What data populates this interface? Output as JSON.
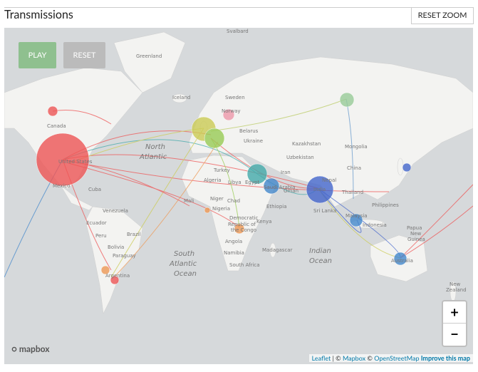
{
  "header": {
    "title": "Transmissions",
    "reset_zoom": "RESET ZOOM"
  },
  "controls": {
    "play": "PLAY",
    "reset": "RESET",
    "zoom_in": "+",
    "zoom_out": "−"
  },
  "map_labels": [
    "Greenland",
    "Iceland",
    "Sweden",
    "Norway",
    "Svalbard",
    "Canada",
    "United States",
    "Mexico",
    "Cuba",
    "Venezuela",
    "Ecuador",
    "Peru",
    "Brazil",
    "Bolivia",
    "Paraguay",
    "Argentina",
    "North",
    "Atlantic",
    "South",
    "Atlantic",
    "Ocean",
    "Indian",
    "Ocean",
    "Belarus",
    "Ukraine",
    "Kazakhstan",
    "Mongolia",
    "Uzbekistan",
    "China",
    "Turkey",
    "Iran",
    "Algeria",
    "Libya",
    "Egypt",
    "Saudi Arabia",
    "Oman",
    "India",
    "Nepal",
    "Mali",
    "Niger",
    "Chad",
    "Nigeria",
    "Ethiopia",
    "Kenya",
    "Democratic",
    "Republic of",
    "the Congo",
    "Angola",
    "Namibia",
    "Madagascar",
    "South Africa",
    "Sri Lanka",
    "Thailand",
    "Philippines",
    "Malaysia",
    "Indonesia",
    "Papua",
    "New",
    "Guinea",
    "Australia",
    "New",
    "Zealand"
  ],
  "attribution": {
    "logo": "mapbox",
    "leaflet": "Leaflet",
    "mapbox": "Mapbox",
    "osm": "OpenStreetMap",
    "improve": "Improve this map"
  }
}
